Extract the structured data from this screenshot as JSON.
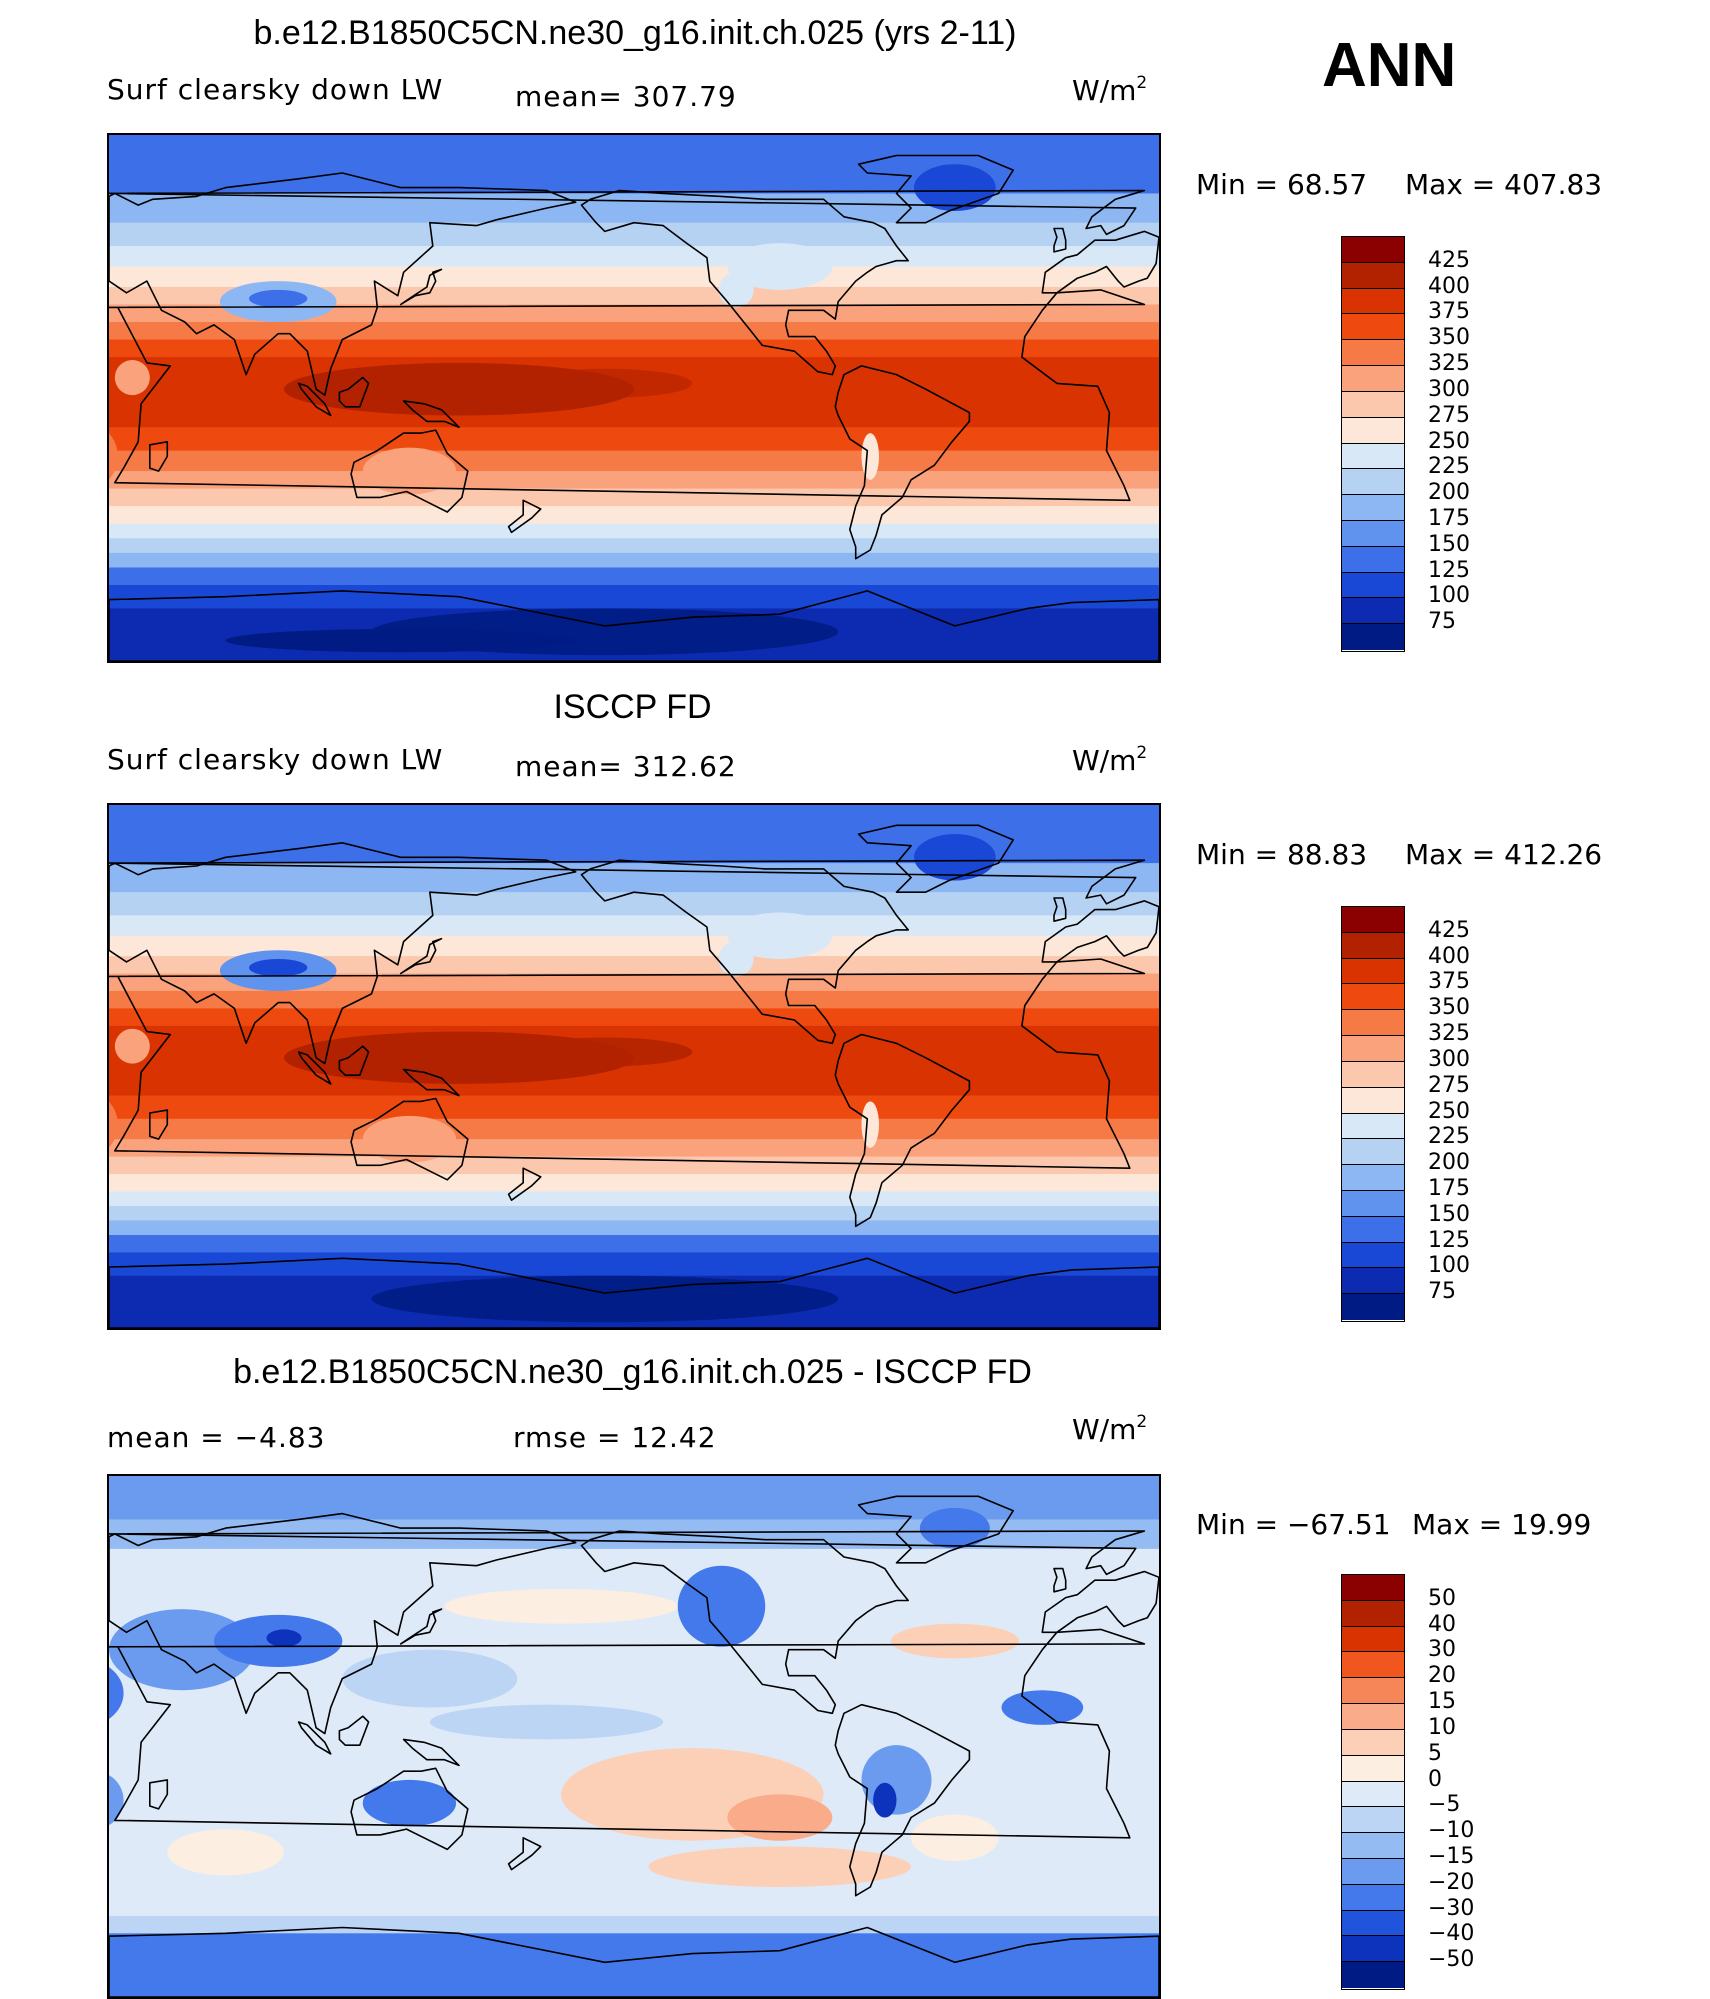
{
  "header": {
    "season": "ANN"
  },
  "panels": [
    {
      "title": "b.e12.B1850C5CN.ne30_g16.init.ch.025 (yrs 2-11)",
      "variable": "Surf clearsky down LW",
      "stat_text": "mean= 307.79",
      "stat2_text": "",
      "units": "W/m",
      "units_sup": "2",
      "min_text": "Min =   68.57",
      "max_text": "Max =  407.83",
      "colorbar": {
        "labels": [
          "425",
          "400",
          "375",
          "350",
          "325",
          "300",
          "275",
          "250",
          "225",
          "200",
          "175",
          "150",
          "125",
          "100",
          "75"
        ],
        "colors": [
          "#8b0000",
          "#b22200",
          "#d83300",
          "#ee4a10",
          "#f57a46",
          "#f9a27c",
          "#fcc8ad",
          "#fde7d8",
          "#d8e8f7",
          "#b5d2f3",
          "#8db7f2",
          "#5f93ee",
          "#3c6fe8",
          "#1a48d6",
          "#0c2bb0",
          "#001c84"
        ]
      },
      "field": "clearsky"
    },
    {
      "title": "ISCCP FD",
      "variable": "Surf clearsky down LW",
      "stat_text": "mean= 312.62",
      "stat2_text": "",
      "units": "W/m",
      "units_sup": "2",
      "min_text": "Min =   88.83",
      "max_text": "Max =  412.26",
      "colorbar": {
        "labels": [
          "425",
          "400",
          "375",
          "350",
          "325",
          "300",
          "275",
          "250",
          "225",
          "200",
          "175",
          "150",
          "125",
          "100",
          "75"
        ],
        "colors": [
          "#8b0000",
          "#b22200",
          "#d83300",
          "#ee4a10",
          "#f57a46",
          "#f9a27c",
          "#fcc8ad",
          "#fde7d8",
          "#d8e8f7",
          "#b5d2f3",
          "#8db7f2",
          "#5f93ee",
          "#3c6fe8",
          "#1a48d6",
          "#0c2bb0",
          "#001c84"
        ]
      },
      "field": "clearsky_obs"
    },
    {
      "title": "b.e12.B1850C5CN.ne30_g16.init.ch.025 - ISCCP FD",
      "variable": "",
      "stat_text": "mean =   −4.83",
      "stat2_text": "rmse =   12.42",
      "units": "W/m",
      "units_sup": "2",
      "min_text": "Min = −67.51",
      "max_text": "Max =   19.99",
      "colorbar": {
        "labels": [
          "50",
          "40",
          "30",
          "20",
          "15",
          "10",
          "5",
          "0",
          "−5",
          "−10",
          "−15",
          "−20",
          "−30",
          "−40",
          "−50"
        ],
        "colors": [
          "#8b0000",
          "#b22200",
          "#d83300",
          "#f2561f",
          "#f68658",
          "#f9ab8a",
          "#fcd0b7",
          "#fdeee2",
          "#dfeaf8",
          "#bcd5f4",
          "#94bbf2",
          "#6a9bef",
          "#4379ea",
          "#2154dc",
          "#0d32bc",
          "#001c84"
        ]
      },
      "field": "diff"
    }
  ]
}
